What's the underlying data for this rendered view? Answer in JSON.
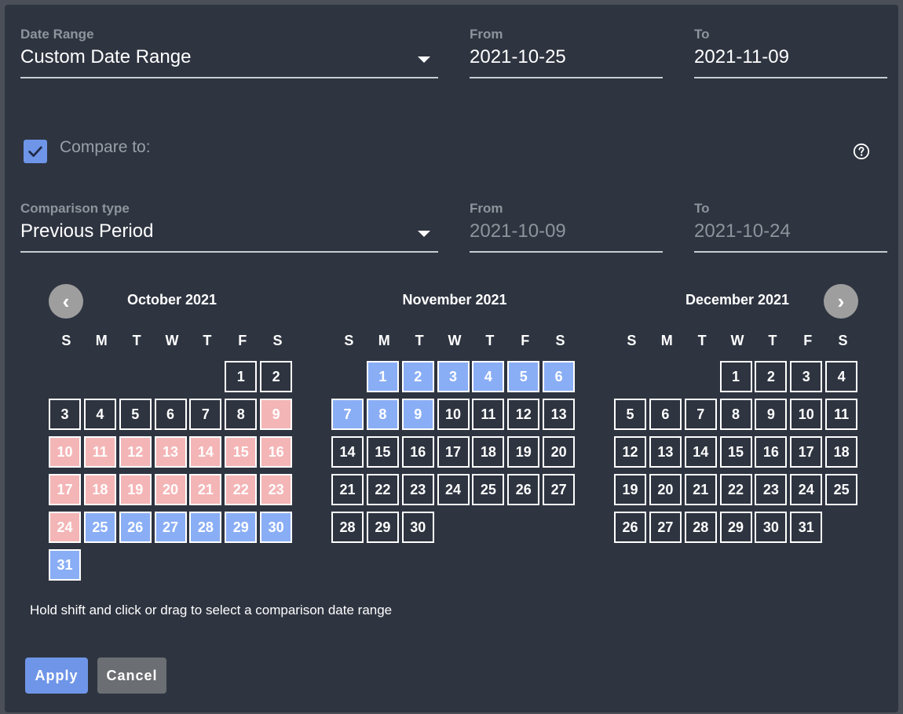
{
  "date_range": {
    "label": "Date Range",
    "value": "Custom Date Range"
  },
  "from": {
    "label": "From",
    "value": "2021-10-25"
  },
  "to": {
    "label": "To",
    "value": "2021-11-09"
  },
  "compare": {
    "checked": true,
    "label": "Compare to:"
  },
  "comparison_type": {
    "label": "Comparison type",
    "value": "Previous Period"
  },
  "compare_from": {
    "label": "From",
    "value": "2021-10-09"
  },
  "compare_to": {
    "label": "To",
    "value": "2021-10-24"
  },
  "nav": {
    "prev": "‹",
    "next": "›"
  },
  "weekdays": [
    "S",
    "M",
    "T",
    "W",
    "T",
    "F",
    "S"
  ],
  "months": [
    {
      "title": "October 2021",
      "first_weekday": 5,
      "days": 31
    },
    {
      "title": "November 2021",
      "first_weekday": 1,
      "days": 30
    },
    {
      "title": "December 2021",
      "first_weekday": 3,
      "days": 31
    }
  ],
  "selection": {
    "primary_color": "#8aaef5",
    "compare_color": "#f4b5b6",
    "primary_start": "2021-10-25",
    "primary_end": "2021-11-09",
    "compare_start": "2021-10-09",
    "compare_end": "2021-10-24"
  },
  "hint": "Hold shift and click or drag to select a comparison date range",
  "buttons": {
    "apply": "Apply",
    "cancel": "Cancel"
  }
}
